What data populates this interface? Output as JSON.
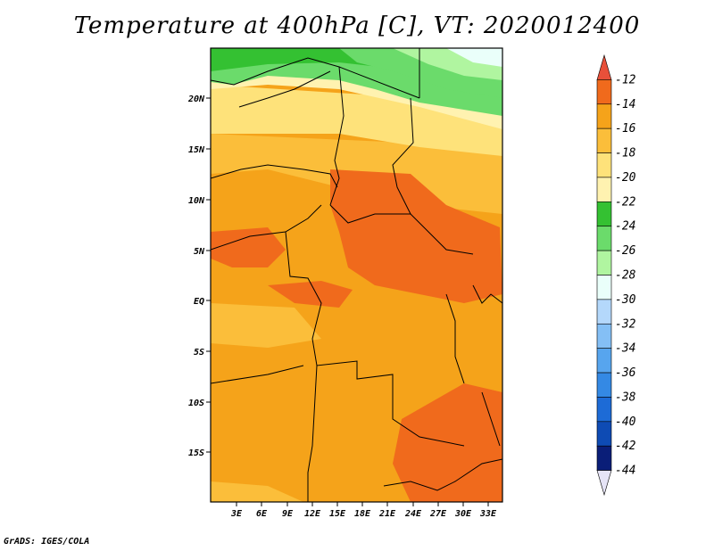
{
  "title": "Temperature at 400hPa [C], VT: 2020012400",
  "credit": "GrADS: IGES/COLA",
  "map": {
    "x_ticks": [
      "3E",
      "6E",
      "9E",
      "12E",
      "15E",
      "18E",
      "21E",
      "24E",
      "27E",
      "30E",
      "33E"
    ],
    "y_ticks": [
      "20N",
      "15N",
      "10N",
      "5N",
      "EQ",
      "5S",
      "10S",
      "15S"
    ]
  },
  "colorbar": {
    "labels": [
      "-12",
      "-14",
      "-16",
      "-18",
      "-20",
      "-22",
      "-24",
      "-26",
      "-28",
      "-30",
      "-32",
      "-34",
      "-36",
      "-38",
      "-40",
      "-42",
      "-44"
    ],
    "colors": [
      "#e8503a",
      "#f06a1c",
      "#f5a31a",
      "#fbbe3a",
      "#fee27a",
      "#fff2b0",
      "#34c132",
      "#6bdb6b",
      "#b0f5a0",
      "#eafffa",
      "#b4d8fb",
      "#84bff5",
      "#57a5ee",
      "#3489e4",
      "#1d6bd6",
      "#0e4bb4",
      "#0a1e78",
      "#e6e4f6"
    ]
  }
}
